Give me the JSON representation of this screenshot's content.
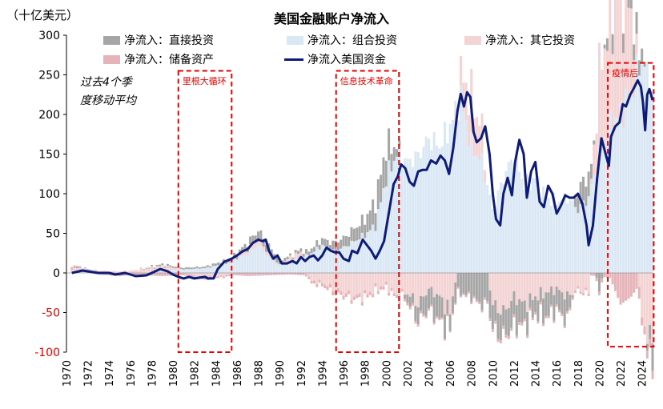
{
  "chart_data": {
    "type": "bar",
    "title": "美国金融账户净流入",
    "unit_label": "（十亿美元）",
    "note": [
      "过去4个季",
      "度移动平均"
    ],
    "ylim": [
      -100,
      300
    ],
    "yticks": [
      -100,
      -50,
      0,
      50,
      100,
      150,
      200,
      250,
      300
    ],
    "xlim": [
      1970,
      2025
    ],
    "xticks": [
      1970,
      1972,
      1974,
      1976,
      1978,
      1980,
      1982,
      1984,
      1986,
      1988,
      1990,
      1992,
      1994,
      1996,
      1998,
      2000,
      2002,
      2004,
      2006,
      2008,
      2010,
      2012,
      2014,
      2016,
      2018,
      2020,
      2022,
      2024
    ],
    "legend": [
      {
        "name": "净流入：直接投资",
        "color": "#a6a6a6",
        "kind": "bar"
      },
      {
        "name": "净流入：组合投资",
        "color": "#dae7f4",
        "kind": "bar"
      },
      {
        "name": "净流入：其它投资",
        "color": "#f3d3d3",
        "kind": "bar"
      },
      {
        "name": "净流入：储备资产",
        "color": "#e6b4b8",
        "kind": "bar"
      },
      {
        "name": "净流入美国资金",
        "color": "#0e1c78",
        "kind": "line"
      }
    ],
    "series_total": [
      [
        1970.5,
        0
      ],
      [
        1971.5,
        3
      ],
      [
        1972,
        2
      ],
      [
        1973,
        0
      ],
      [
        1973.5,
        0
      ],
      [
        1974,
        0
      ],
      [
        1974.6,
        -2
      ],
      [
        1975.5,
        0
      ],
      [
        1976,
        -2
      ],
      [
        1976.5,
        -4
      ],
      [
        1977.5,
        -3
      ],
      [
        1978,
        0
      ],
      [
        1978.8,
        5
      ],
      [
        1979.5,
        2
      ],
      [
        1980,
        -2
      ],
      [
        1980.5,
        -5
      ],
      [
        1981,
        -7
      ],
      [
        1981.5,
        -5
      ],
      [
        1982,
        -7
      ],
      [
        1982.5,
        -6
      ],
      [
        1983,
        -5
      ],
      [
        1983.3,
        -7
      ],
      [
        1983.8,
        -7
      ],
      [
        1984.2,
        5
      ],
      [
        1984.8,
        14
      ],
      [
        1985.5,
        18
      ],
      [
        1986,
        22
      ],
      [
        1986.5,
        27
      ],
      [
        1987,
        30
      ],
      [
        1987.5,
        38
      ],
      [
        1988,
        42
      ],
      [
        1988.4,
        40
      ],
      [
        1988.7,
        42
      ],
      [
        1989,
        28
      ],
      [
        1989.4,
        18
      ],
      [
        1989.8,
        22
      ],
      [
        1990.2,
        12
      ],
      [
        1990.7,
        12
      ],
      [
        1991.2,
        15
      ],
      [
        1991.6,
        12
      ],
      [
        1992,
        20
      ],
      [
        1992.4,
        15
      ],
      [
        1992.8,
        20
      ],
      [
        1993.2,
        22
      ],
      [
        1993.6,
        16
      ],
      [
        1994,
        22
      ],
      [
        1994.4,
        32
      ],
      [
        1994.8,
        28
      ],
      [
        1995.2,
        26
      ],
      [
        1995.6,
        26
      ],
      [
        1996,
        18
      ],
      [
        1996.5,
        15
      ],
      [
        1996.8,
        28
      ],
      [
        1997.3,
        25
      ],
      [
        1997.8,
        42
      ],
      [
        1998.2,
        35
      ],
      [
        1998.6,
        28
      ],
      [
        1999.0,
        18
      ],
      [
        1999.4,
        28
      ],
      [
        1999.8,
        40
      ],
      [
        2000.3,
        80
      ],
      [
        2000.7,
        112
      ],
      [
        2001.1,
        122
      ],
      [
        2001.4,
        137
      ],
      [
        2001.8,
        132
      ],
      [
        2002.2,
        115
      ],
      [
        2002.6,
        110
      ],
      [
        2003.0,
        128
      ],
      [
        2003.4,
        130
      ],
      [
        2003.8,
        130
      ],
      [
        2004.2,
        142
      ],
      [
        2004.7,
        138
      ],
      [
        2005.1,
        148
      ],
      [
        2005.5,
        142
      ],
      [
        2005.9,
        125
      ],
      [
        2006.3,
        158
      ],
      [
        2006.7,
        205
      ],
      [
        2007.0,
        226
      ],
      [
        2007.3,
        210
      ],
      [
        2007.6,
        228
      ],
      [
        2007.9,
        222
      ],
      [
        2008.2,
        178
      ],
      [
        2008.5,
        165
      ],
      [
        2008.9,
        170
      ],
      [
        2009.3,
        185
      ],
      [
        2009.7,
        150
      ],
      [
        2010.0,
        100
      ],
      [
        2010.3,
        68
      ],
      [
        2010.7,
        60
      ],
      [
        2011.0,
        100
      ],
      [
        2011.4,
        120
      ],
      [
        2011.8,
        98
      ],
      [
        2012.1,
        140
      ],
      [
        2012.5,
        168
      ],
      [
        2012.9,
        150
      ],
      [
        2013.2,
        95
      ],
      [
        2013.6,
        128
      ],
      [
        2014.0,
        140
      ],
      [
        2014.4,
        90
      ],
      [
        2014.8,
        83
      ],
      [
        2015.2,
        110
      ],
      [
        2015.6,
        100
      ],
      [
        2016.0,
        75
      ],
      [
        2016.4,
        85
      ],
      [
        2016.8,
        98
      ],
      [
        2017.2,
        95
      ],
      [
        2017.6,
        95
      ],
      [
        2018.0,
        100
      ],
      [
        2018.4,
        88
      ],
      [
        2018.8,
        60
      ],
      [
        2019.0,
        35
      ],
      [
        2019.4,
        60
      ],
      [
        2019.8,
        120
      ],
      [
        2020.2,
        170
      ],
      [
        2020.6,
        150
      ],
      [
        2020.9,
        135
      ],
      [
        2021.1,
        172
      ],
      [
        2021.5,
        185
      ],
      [
        2021.9,
        190
      ],
      [
        2022.2,
        213
      ],
      [
        2022.5,
        210
      ],
      [
        2022.9,
        225
      ],
      [
        2023.2,
        232
      ],
      [
        2023.6,
        243
      ],
      [
        2023.9,
        235
      ],
      [
        2024.1,
        215
      ],
      [
        2024.3,
        180
      ],
      [
        2024.5,
        225
      ],
      [
        2024.7,
        232
      ],
      [
        2025.0,
        218
      ]
    ],
    "bars_portfolio": [
      [
        1971,
        2
      ],
      [
        1975,
        -2
      ],
      [
        1979,
        3
      ],
      [
        1983,
        6
      ],
      [
        1985,
        12
      ],
      [
        1987,
        24
      ],
      [
        1988,
        36
      ],
      [
        1989,
        20
      ],
      [
        1990,
        10
      ],
      [
        1991,
        14
      ],
      [
        1992,
        18
      ],
      [
        1993,
        25
      ],
      [
        1994,
        35
      ],
      [
        1995,
        28
      ],
      [
        1996,
        32
      ],
      [
        1997,
        40
      ],
      [
        1998,
        48
      ],
      [
        1999,
        60
      ],
      [
        2000,
        120
      ],
      [
        2001,
        150
      ],
      [
        2002,
        140
      ],
      [
        2003,
        148
      ],
      [
        2004,
        170
      ],
      [
        2005,
        160
      ],
      [
        2006,
        185
      ],
      [
        2007,
        220
      ],
      [
        2008,
        160
      ],
      [
        2009,
        140
      ],
      [
        2010,
        80
      ],
      [
        2011,
        120
      ],
      [
        2012,
        150
      ],
      [
        2013,
        110
      ],
      [
        2014,
        120
      ],
      [
        2015,
        95
      ],
      [
        2016,
        90
      ],
      [
        2017,
        95
      ],
      [
        2018,
        80
      ],
      [
        2019,
        95
      ],
      [
        2020,
        150
      ],
      [
        2021,
        185
      ],
      [
        2022,
        200
      ],
      [
        2023,
        230
      ],
      [
        2024,
        270
      ],
      [
        2025,
        230
      ]
    ],
    "bars_direct": [
      [
        1971,
        1
      ],
      [
        1975,
        -1
      ],
      [
        1979,
        2
      ],
      [
        1983,
        2
      ],
      [
        1985,
        4
      ],
      [
        1987,
        8
      ],
      [
        1988,
        10
      ],
      [
        1989,
        10
      ],
      [
        1990,
        6
      ],
      [
        1991,
        2
      ],
      [
        1992,
        4
      ],
      [
        1993,
        6
      ],
      [
        1994,
        8
      ],
      [
        1995,
        10
      ],
      [
        1996,
        12
      ],
      [
        1997,
        16
      ],
      [
        1998,
        20
      ],
      [
        1999,
        30
      ],
      [
        2000,
        40
      ],
      [
        2001,
        10
      ],
      [
        2002,
        -10
      ],
      [
        2003,
        -20
      ],
      [
        2004,
        -25
      ],
      [
        2005,
        -30
      ],
      [
        2006,
        -20
      ],
      [
        2007,
        -25
      ],
      [
        2008,
        -30
      ],
      [
        2009,
        -40
      ],
      [
        2010,
        -30
      ],
      [
        2011,
        -30
      ],
      [
        2012,
        -35
      ],
      [
        2013,
        -25
      ],
      [
        2014,
        -20
      ],
      [
        2015,
        -30
      ],
      [
        2016,
        -25
      ],
      [
        2017,
        -30
      ],
      [
        2018,
        25
      ],
      [
        2019,
        30
      ],
      [
        2020,
        -20
      ],
      [
        2021,
        30
      ],
      [
        2022,
        35
      ],
      [
        2023,
        25
      ],
      [
        2024,
        20
      ],
      [
        2025,
        -35
      ]
    ],
    "bars_other": [
      [
        1971,
        4
      ],
      [
        1975,
        2
      ],
      [
        1979,
        6
      ],
      [
        1983,
        -6
      ],
      [
        1985,
        -3
      ],
      [
        1987,
        6
      ],
      [
        1988,
        8
      ],
      [
        1989,
        4
      ],
      [
        1990,
        0
      ],
      [
        1991,
        6
      ],
      [
        1992,
        8
      ],
      [
        1993,
        -10
      ],
      [
        1994,
        -12
      ],
      [
        1995,
        -20
      ],
      [
        1996,
        -25
      ],
      [
        1997,
        -30
      ],
      [
        1998,
        -28
      ],
      [
        1999,
        -20
      ],
      [
        2000,
        -15
      ],
      [
        2001,
        -30
      ],
      [
        2002,
        -25
      ],
      [
        2003,
        -40
      ],
      [
        2004,
        -20
      ],
      [
        2005,
        -30
      ],
      [
        2006,
        -50
      ],
      [
        2007,
        30
      ],
      [
        2008,
        60
      ],
      [
        2009,
        40
      ],
      [
        2010,
        -40
      ],
      [
        2011,
        -50
      ],
      [
        2012,
        -30
      ],
      [
        2013,
        -40
      ],
      [
        2014,
        -30
      ],
      [
        2015,
        -25
      ],
      [
        2016,
        -20
      ],
      [
        2017,
        -30
      ],
      [
        2018,
        -20
      ],
      [
        2019,
        -25
      ],
      [
        2020,
        100
      ],
      [
        2021,
        140
      ],
      [
        2022,
        160
      ],
      [
        2023,
        100
      ],
      [
        2024,
        -60
      ],
      [
        2025,
        -90
      ]
    ],
    "bars_reserve": [
      [
        1971,
        2
      ],
      [
        1973,
        -2
      ],
      [
        1975,
        -1
      ],
      [
        1977,
        -3
      ],
      [
        1979,
        -4
      ],
      [
        1981,
        -3
      ],
      [
        1985,
        -2
      ],
      [
        1987,
        -4
      ],
      [
        1991,
        -2
      ],
      [
        1995,
        -5
      ],
      [
        1999,
        -4
      ],
      [
        2003,
        -3
      ],
      [
        2007,
        -2
      ],
      [
        2011,
        -4
      ],
      [
        2015,
        -3
      ],
      [
        2019,
        -3
      ],
      [
        2021,
        -6
      ],
      [
        2022,
        -40
      ],
      [
        2023,
        -30
      ],
      [
        2024,
        -10
      ]
    ],
    "annotations": [
      {
        "label": "里根大循环",
        "x0": 1980.5,
        "x1": 1985.5,
        "y0": -100,
        "y1": 255
      },
      {
        "label": "信息技术革命",
        "x0": 1995.3,
        "x1": 2001.2,
        "y0": -100,
        "y1": 255
      },
      {
        "label": "疫情后",
        "x0": 2020.8,
        "x1": 2025.1,
        "y0": -93,
        "y1": 265
      }
    ]
  }
}
